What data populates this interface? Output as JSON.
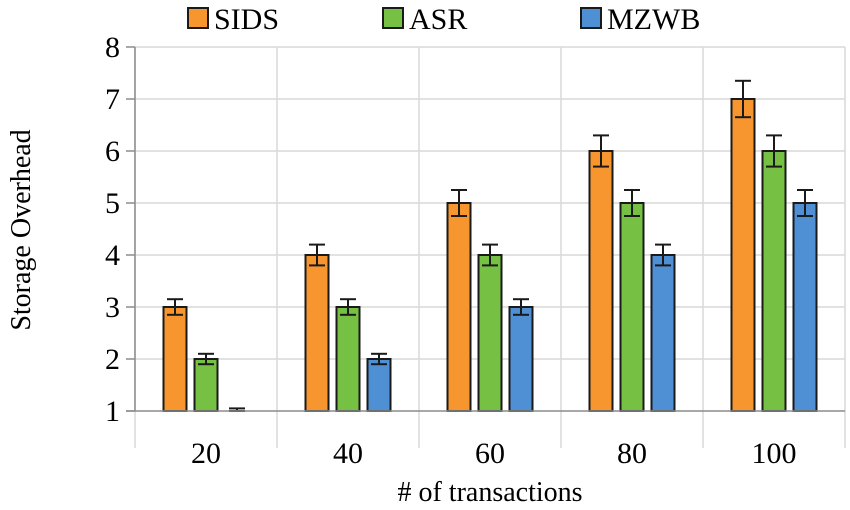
{
  "chart_data": {
    "type": "bar",
    "title": "",
    "xlabel": "# of transactions",
    "ylabel": "Storage Overhead",
    "categories": [
      "20",
      "40",
      "60",
      "80",
      "100"
    ],
    "ylim": [
      1,
      8
    ],
    "yticks": [
      "1",
      "2",
      "3",
      "4",
      "5",
      "6",
      "7",
      "8"
    ],
    "grid": true,
    "legend_position": "top",
    "series": [
      {
        "name": "SIDS",
        "color": "#f7962f",
        "values": [
          3,
          4,
          5,
          6,
          7
        ],
        "errors": [
          0.15,
          0.2,
          0.25,
          0.3,
          0.35
        ]
      },
      {
        "name": "ASR",
        "color": "#76c043",
        "values": [
          2,
          3,
          4,
          5,
          6
        ],
        "errors": [
          0.1,
          0.15,
          0.2,
          0.25,
          0.3
        ]
      },
      {
        "name": "MZWB",
        "color": "#4f90d4",
        "values": [
          1,
          2,
          3,
          4,
          5
        ],
        "errors": [
          0.05,
          0.1,
          0.15,
          0.2,
          0.25
        ]
      }
    ]
  }
}
